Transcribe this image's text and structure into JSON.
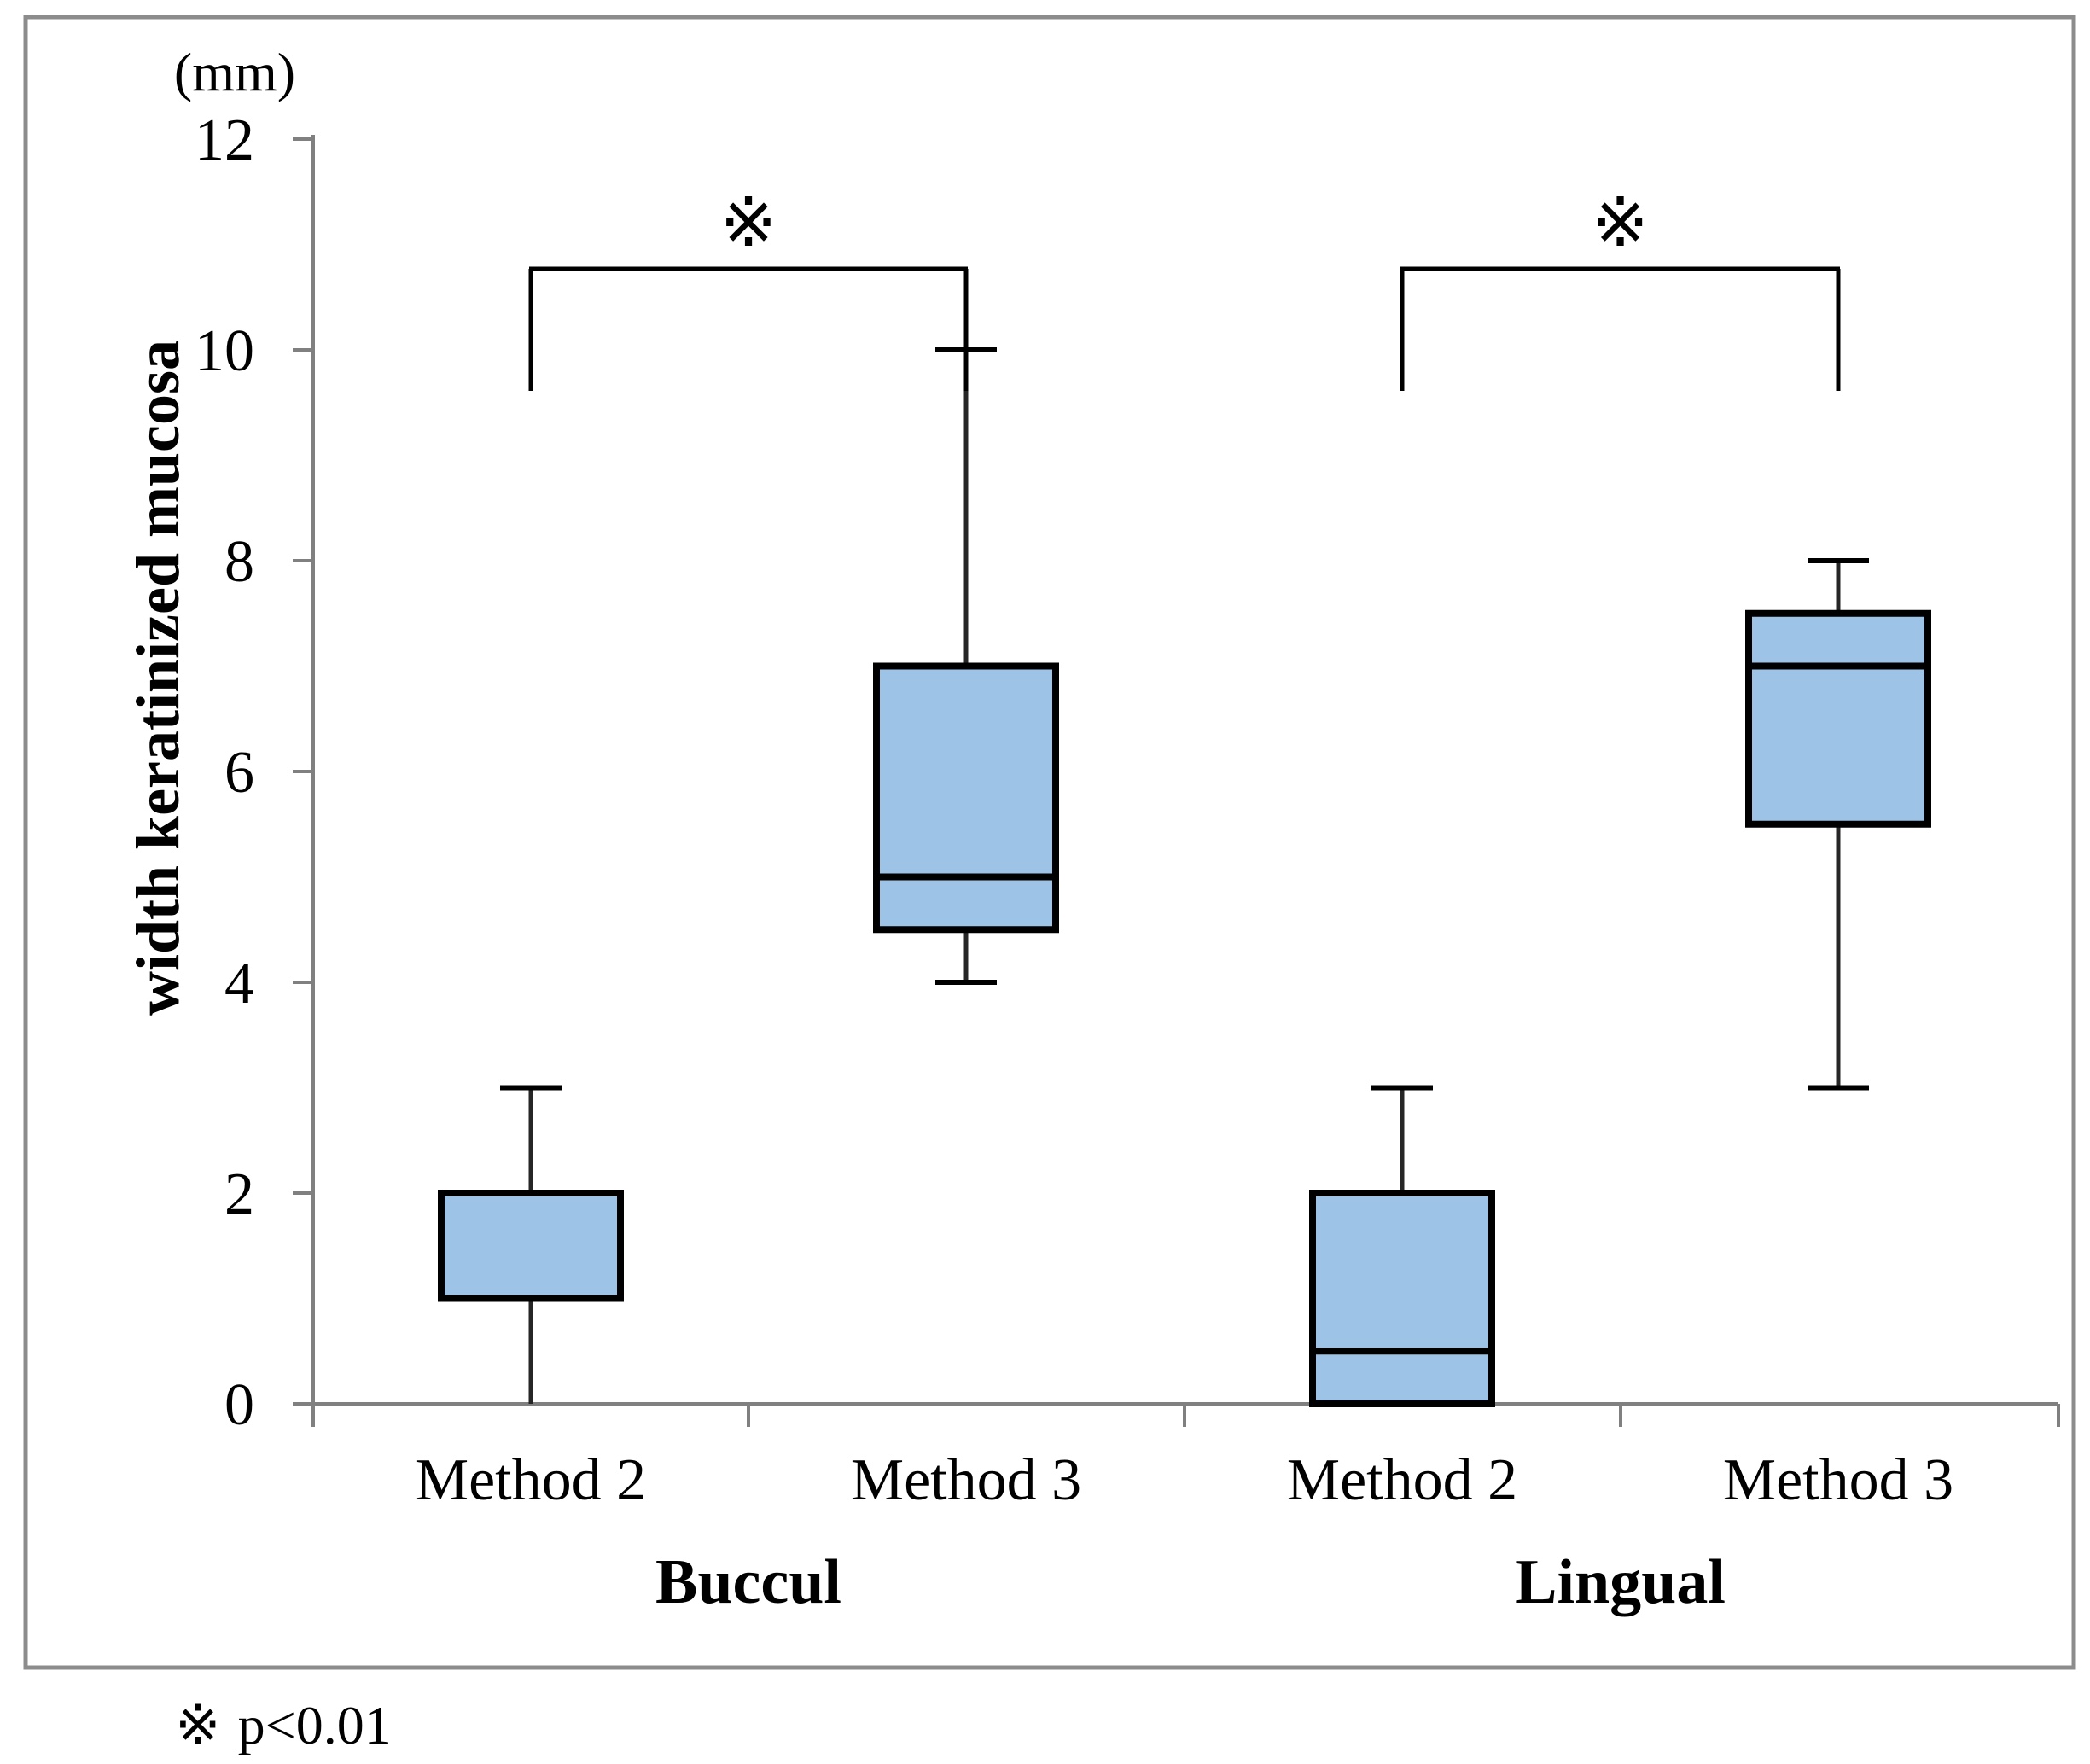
{
  "figure": {
    "unit_label": "(mm)",
    "y_axis_title": "width keratinized mucosa",
    "footnote": {
      "symbol": "※",
      "text": "p<0.01"
    }
  },
  "chart_data": {
    "type": "boxplot",
    "title": "",
    "ylabel": "width keratinized mucosa",
    "y_unit": "(mm)",
    "ylim": [
      0,
      12
    ],
    "y_ticks": [
      12,
      10,
      8,
      6,
      4,
      2,
      0
    ],
    "grid": false,
    "groups": [
      "Buccul",
      "Lingual"
    ],
    "boxes": [
      {
        "group": "Buccul",
        "label": "Method 2",
        "whisker_low": 0,
        "q1": 1,
        "median": null,
        "q3": 2,
        "whisker_high": 3,
        "lower_cap": false,
        "upper_cap": true
      },
      {
        "group": "Buccul",
        "label": "Method 3",
        "whisker_low": 4,
        "q1": 4.5,
        "median": 5,
        "q3": 7,
        "whisker_high": 10,
        "lower_cap": true,
        "upper_cap": true
      },
      {
        "group": "Lingual",
        "label": "Method 2",
        "whisker_low": 0,
        "q1": 0,
        "median": 0.5,
        "q3": 2,
        "whisker_high": 3,
        "lower_cap": false,
        "upper_cap": true
      },
      {
        "group": "Lingual",
        "label": "Method 3",
        "whisker_low": 3,
        "q1": 5.5,
        "median": 7,
        "q3": 7.5,
        "whisker_high": 8,
        "lower_cap": true,
        "upper_cap": true
      }
    ],
    "significance_brackets": [
      {
        "group": "Buccul",
        "from": "Method 2",
        "to": "Method 3",
        "symbol": "※"
      },
      {
        "group": "Lingual",
        "from": "Method 2",
        "to": "Method 3",
        "symbol": "※"
      }
    ],
    "box_fill_color": "#9DC3E6",
    "box_border_color": "#000000",
    "whisker_color": "#262626",
    "axis_color": "#808080",
    "border_color": "#8C8C8C"
  }
}
